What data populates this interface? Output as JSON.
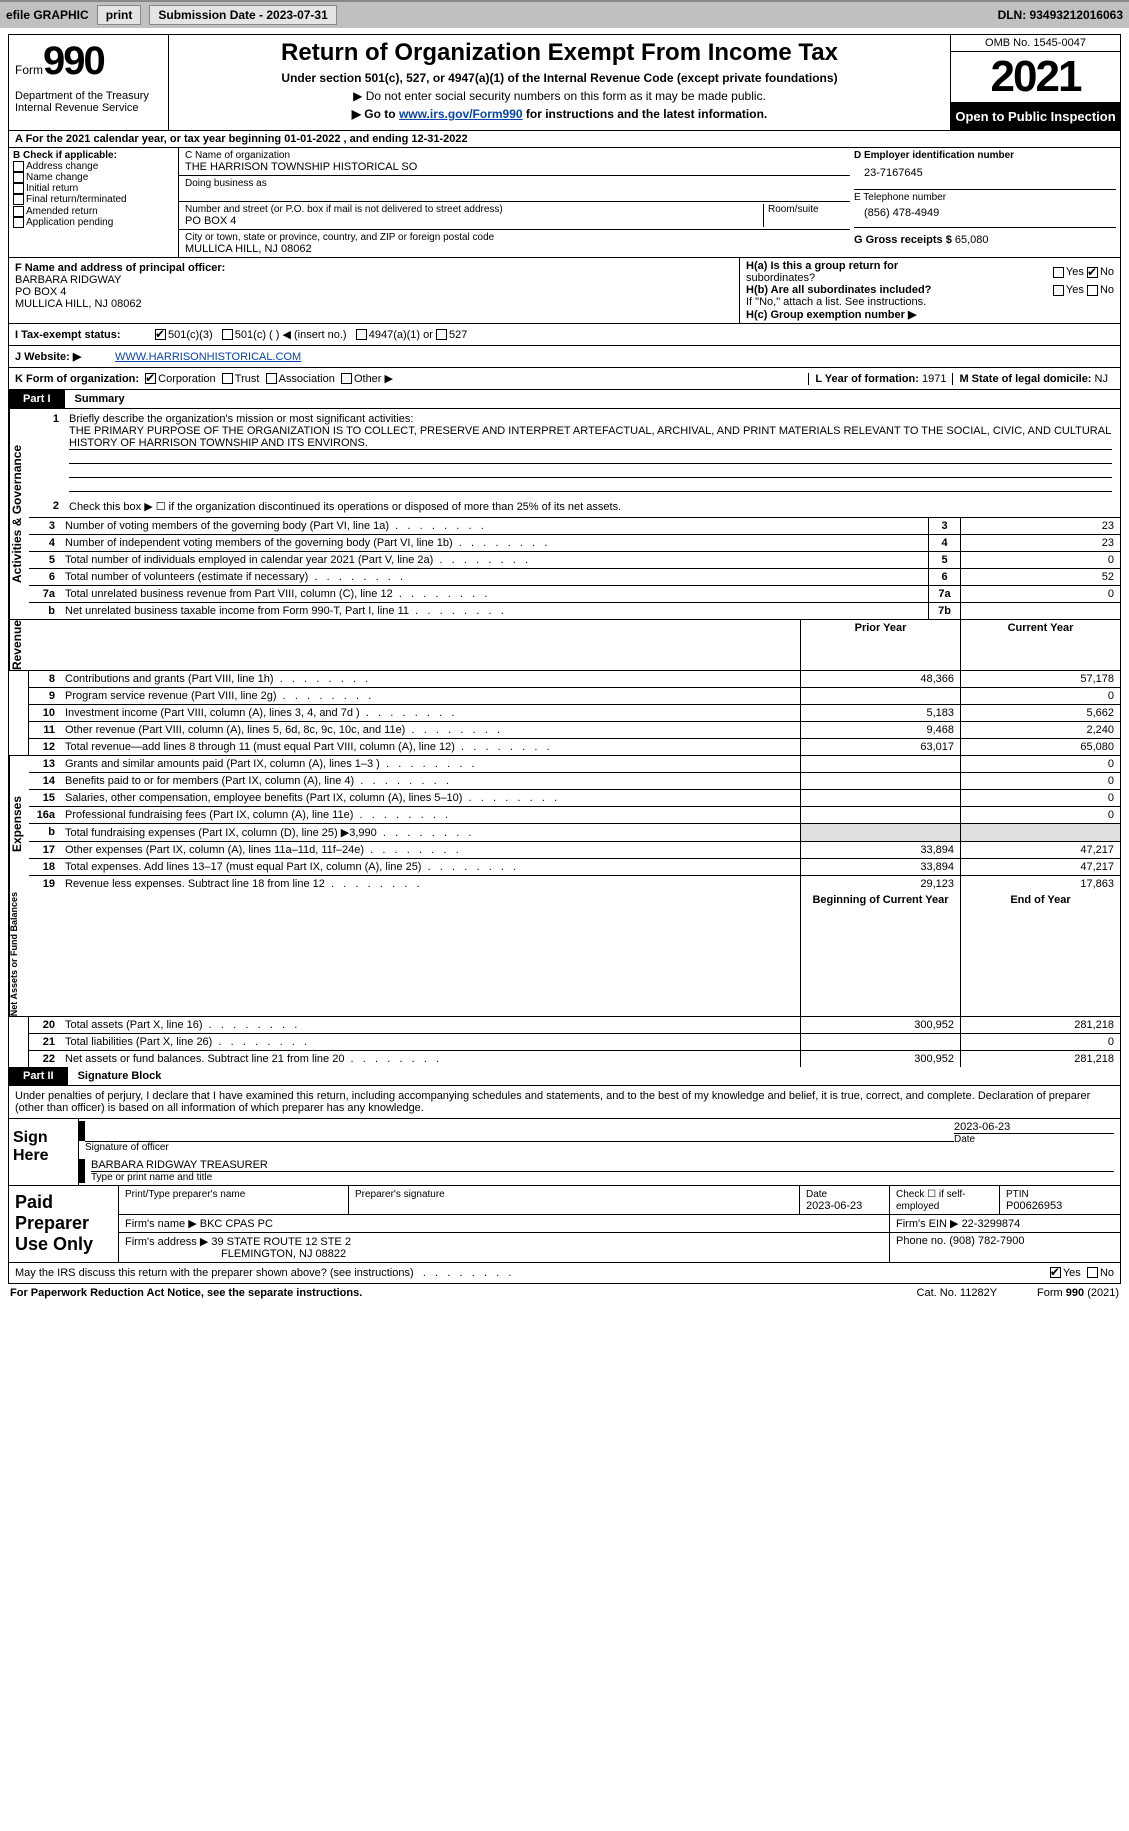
{
  "topbar": {
    "efile_label": "efile GRAPHIC",
    "print_btn": "print",
    "sub_date_label": "Submission Date - 2023-07-31",
    "dln_label": "DLN: 93493212016063"
  },
  "head": {
    "form_word": "Form",
    "form_num": "990",
    "dept1": "Department of the Treasury",
    "dept2": "Internal Revenue Service",
    "title": "Return of Organization Exempt From Income Tax",
    "sub1": "Under section 501(c), 527, or 4947(a)(1) of the Internal Revenue Code (except private foundations)",
    "sub2": "▶ Do not enter social security numbers on this form as it may be made public.",
    "sub3_prefix": "▶ Go to ",
    "sub3_link": "www.irs.gov/Form990",
    "sub3_suffix": " for instructions and the latest information.",
    "omb": "OMB No. 1545-0047",
    "year": "2021",
    "open": "Open to Public Inspection"
  },
  "line_a": "A  For the 2021 calendar year, or tax year beginning 01-01-2022   , and ending 12-31-2022",
  "col_b": {
    "hdr": "B Check if applicable:",
    "o1": "Address change",
    "o2": "Name change",
    "o3": "Initial return",
    "o4": "Final return/terminated",
    "o5": "Amended return",
    "o6": "Application pending"
  },
  "col_c": {
    "name_lbl": "C Name of organization",
    "name": "THE HARRISON TOWNSHIP HISTORICAL SO",
    "dba_lbl": "Doing business as",
    "street_lbl": "Number and street (or P.O. box if mail is not delivered to street address)",
    "room_lbl": "Room/suite",
    "street": "PO BOX 4",
    "city_lbl": "City or town, state or province, country, and ZIP or foreign postal code",
    "city": "MULLICA HILL, NJ  08062"
  },
  "col_d": {
    "ein_lbl": "D Employer identification number",
    "ein": "23-7167645",
    "phone_lbl": "E Telephone number",
    "phone": "(856) 478-4949",
    "gross_lbl": "G Gross receipts $",
    "gross": "65,080"
  },
  "row_f": {
    "f_lbl": "F Name and address of principal officer:",
    "f_name": "BARBARA RIDGWAY",
    "f_addr1": "PO BOX 4",
    "f_addr2": "MULLICA HILL, NJ  08062",
    "ha_lbl": "H(a)  Is this a group return for",
    "ha_lbl2": "subordinates?",
    "hb_lbl": "H(b)  Are all subordinates included?",
    "hb_note": "If \"No,\" attach a list. See instructions.",
    "hc_lbl": "H(c)  Group exemption number ▶",
    "yes": "Yes",
    "no": "No"
  },
  "line_i": {
    "lbl": "I     Tax-exempt status:",
    "o1": "501(c)(3)",
    "o2": "501(c) (  ) ◀ (insert no.)",
    "o3": "4947(a)(1) or",
    "o4": "527"
  },
  "line_j": {
    "lbl": "J    Website: ▶",
    "val": "WWW.HARRISONHISTORICAL.COM"
  },
  "line_k": {
    "lbl": "K Form of organization:",
    "o1": "Corporation",
    "o2": "Trust",
    "o3": "Association",
    "o4": "Other ▶",
    "l_lbl": "L Year of formation:",
    "l_val": "1971",
    "m_lbl": "M State of legal domicile:",
    "m_val": "NJ"
  },
  "part1": {
    "tab": "Part I",
    "title": "Summary",
    "l1a": "Briefly describe the organization's mission or most significant activities:",
    "l1b": "THE PRIMARY PURPOSE OF THE ORGANIZATION IS TO COLLECT, PRESERVE AND INTERPRET ARTEFACTUAL, ARCHIVAL, AND PRINT MATERIALS RELEVANT TO THE SOCIAL, CIVIC, AND CULTURAL HISTORY OF HARRISON TOWNSHIP AND ITS ENVIRONS.",
    "l2": "Check this box ▶ ☐  if the organization discontinued its operations or disposed of more than 25% of its net assets.",
    "side_gov": "Activities & Governance",
    "side_rev": "Revenue",
    "side_exp": "Expenses",
    "side_net": "Net Assets or Fund Balances",
    "rows_top": [
      {
        "n": "3",
        "t": "Number of voting members of the governing body (Part VI, line 1a)",
        "box": "3",
        "v": "23"
      },
      {
        "n": "4",
        "t": "Number of independent voting members of the governing body (Part VI, line 1b)",
        "box": "4",
        "v": "23"
      },
      {
        "n": "5",
        "t": "Total number of individuals employed in calendar year 2021 (Part V, line 2a)",
        "box": "5",
        "v": "0"
      },
      {
        "n": "6",
        "t": "Total number of volunteers (estimate if necessary)",
        "box": "6",
        "v": "52"
      },
      {
        "n": "7a",
        "t": "Total unrelated business revenue from Part VIII, column (C), line 12",
        "box": "7a",
        "v": "0"
      },
      {
        "n": "b",
        "t": "Net unrelated business taxable income from Form 990-T, Part I, line 11",
        "box": "7b",
        "v": ""
      }
    ],
    "hdr_prior": "Prior Year",
    "hdr_curr": "Current Year",
    "rows_rev": [
      {
        "n": "8",
        "t": "Contributions and grants (Part VIII, line 1h)",
        "p": "48,366",
        "c": "57,178"
      },
      {
        "n": "9",
        "t": "Program service revenue (Part VIII, line 2g)",
        "p": "",
        "c": "0"
      },
      {
        "n": "10",
        "t": "Investment income (Part VIII, column (A), lines 3, 4, and 7d )",
        "p": "5,183",
        "c": "5,662"
      },
      {
        "n": "11",
        "t": "Other revenue (Part VIII, column (A), lines 5, 6d, 8c, 9c, 10c, and 11e)",
        "p": "9,468",
        "c": "2,240"
      },
      {
        "n": "12",
        "t": "Total revenue—add lines 8 through 11 (must equal Part VIII, column (A), line 12)",
        "p": "63,017",
        "c": "65,080"
      }
    ],
    "rows_exp": [
      {
        "n": "13",
        "t": "Grants and similar amounts paid (Part IX, column (A), lines 1–3 )",
        "p": "",
        "c": "0"
      },
      {
        "n": "14",
        "t": "Benefits paid to or for members (Part IX, column (A), line 4)",
        "p": "",
        "c": "0"
      },
      {
        "n": "15",
        "t": "Salaries, other compensation, employee benefits (Part IX, column (A), lines 5–10)",
        "p": "",
        "c": "0"
      },
      {
        "n": "16a",
        "t": "Professional fundraising fees (Part IX, column (A), line 11e)",
        "p": "",
        "c": "0"
      },
      {
        "n": "b",
        "t": "Total fundraising expenses (Part IX, column (D), line 25) ▶3,990",
        "p": "shade",
        "c": "shade"
      },
      {
        "n": "17",
        "t": "Other expenses (Part IX, column (A), lines 11a–11d, 11f–24e)",
        "p": "33,894",
        "c": "47,217"
      },
      {
        "n": "18",
        "t": "Total expenses. Add lines 13–17 (must equal Part IX, column (A), line 25)",
        "p": "33,894",
        "c": "47,217"
      },
      {
        "n": "19",
        "t": "Revenue less expenses. Subtract line 18 from line 12",
        "p": "29,123",
        "c": "17,863"
      }
    ],
    "hdr_beg": "Beginning of Current Year",
    "hdr_end": "End of Year",
    "rows_net": [
      {
        "n": "20",
        "t": "Total assets (Part X, line 16)",
        "p": "300,952",
        "c": "281,218"
      },
      {
        "n": "21",
        "t": "Total liabilities (Part X, line 26)",
        "p": "",
        "c": "0"
      },
      {
        "n": "22",
        "t": "Net assets or fund balances. Subtract line 21 from line 20",
        "p": "300,952",
        "c": "281,218"
      }
    ]
  },
  "part2": {
    "tab": "Part II",
    "title": "Signature Block",
    "decl": "Under penalties of perjury, I declare that I have examined this return, including accompanying schedules and statements, and to the best of my knowledge and belief, it is true, correct, and complete. Declaration of preparer (other than officer) is based on all information of which preparer has any knowledge.",
    "sign_here": "Sign Here",
    "sig_officer": "Signature of officer",
    "sig_date": "2023-06-23",
    "date_lbl": "Date",
    "officer_name": "BARBARA RIDGWAY TREASURER",
    "type_name": "Type or print name and title"
  },
  "paid": {
    "lbl": "Paid Preparer Use Only",
    "print_name_lbl": "Print/Type preparer's name",
    "prep_sig_lbl": "Preparer's signature",
    "date_lbl": "Date",
    "date_val": "2023-06-23",
    "check_lbl": "Check ☐ if self-employed",
    "ptin_lbl": "PTIN",
    "ptin": "P00626953",
    "firm_name_lbl": "Firm's name    ▶",
    "firm_name": "BKC CPAS PC",
    "firm_ein_lbl": "Firm's EIN ▶",
    "firm_ein": "22-3299874",
    "firm_addr_lbl": "Firm's address ▶",
    "firm_addr1": "39 STATE ROUTE 12 STE 2",
    "firm_addr2": "FLEMINGTON, NJ  08822",
    "phone_lbl": "Phone no.",
    "phone": "(908) 782-7900"
  },
  "footer": {
    "discuss": "May the IRS discuss this return with the preparer shown above? (see instructions)",
    "yes": "Yes",
    "no": "No"
  },
  "last": {
    "pra": "For Paperwork Reduction Act Notice, see the separate instructions.",
    "cat": "Cat. No. 11282Y",
    "form": "Form 990 (2021)"
  }
}
